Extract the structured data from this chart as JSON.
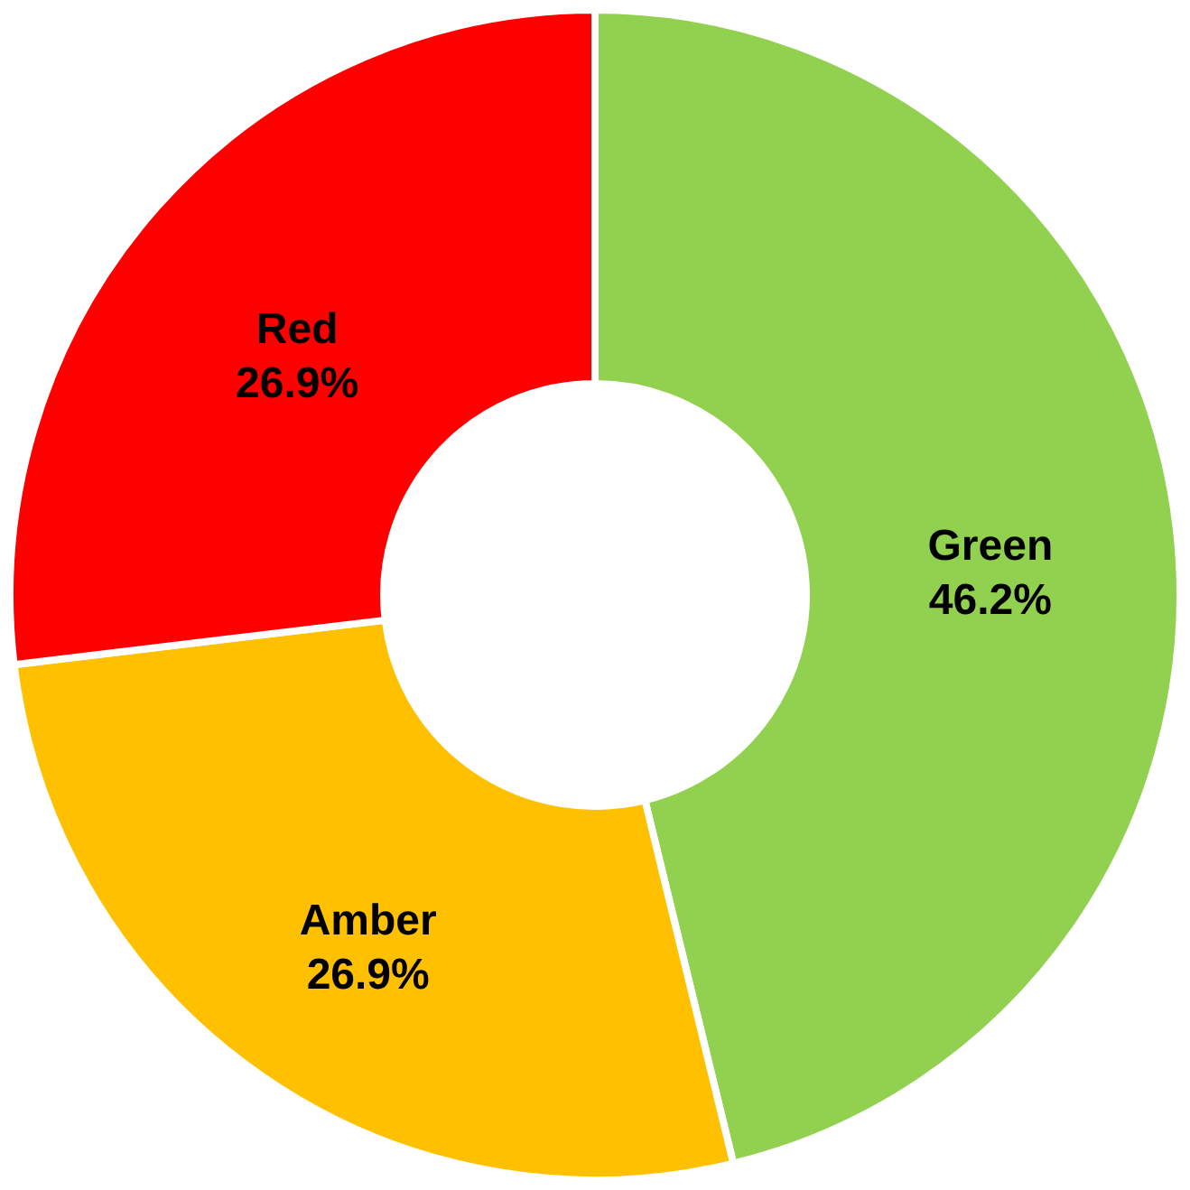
{
  "chart_data": {
    "type": "donut",
    "categories": [
      "Green",
      "Amber",
      "Red"
    ],
    "values": [
      46.2,
      26.9,
      26.9
    ],
    "colors": [
      "#92d050",
      "#ffc000",
      "#ff0000"
    ],
    "value_labels": [
      "46.2%",
      "26.9%",
      "26.9%"
    ]
  }
}
